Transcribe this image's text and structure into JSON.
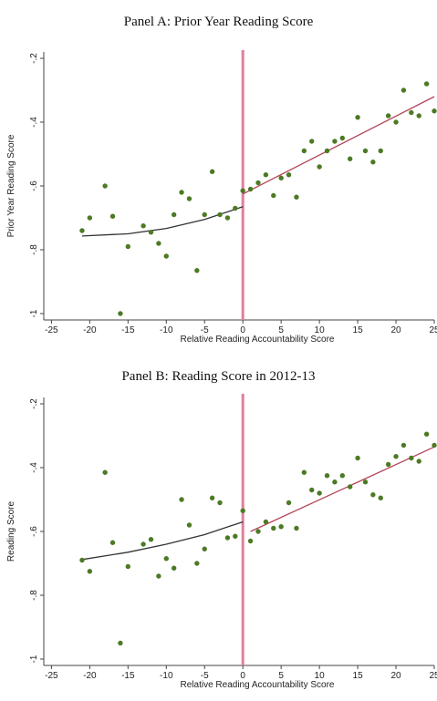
{
  "colors": {
    "dot": "#4c7a24",
    "fit_line": "#333333",
    "fit_line_right": "#b4455a",
    "cutoff": "#e0809a",
    "axis": "#444444"
  },
  "chart_data": [
    {
      "type": "scatter",
      "title": "Panel A: Prior Year Reading Score",
      "xlabel": "Relative Reading Accountability Score",
      "ylabel": "Prior Year Reading Score",
      "xlim": [
        -26,
        25
      ],
      "ylim": [
        -1.02,
        -0.18
      ],
      "xticks": [
        -25,
        -20,
        -15,
        -10,
        -5,
        0,
        5,
        10,
        15,
        20,
        25
      ],
      "xtick_labels": [
        "-25",
        "-20",
        "-15",
        "-10",
        "-5",
        "0",
        "5",
        "10",
        "15",
        "20",
        "25"
      ],
      "yticks": [
        -0.2,
        -0.4,
        -0.6,
        -0.8,
        -1.0
      ],
      "ytick_labels": [
        "-.2",
        "-.4",
        "-.6",
        "-.8",
        "-1"
      ],
      "cutoff_x": 0,
      "points": [
        [
          -21,
          -0.74
        ],
        [
          -20,
          -0.7
        ],
        [
          -18,
          -0.6
        ],
        [
          -17,
          -0.695
        ],
        [
          -16,
          -1.0
        ],
        [
          -15,
          -0.79
        ],
        [
          -13,
          -0.725
        ],
        [
          -12,
          -0.745
        ],
        [
          -11,
          -0.78
        ],
        [
          -10,
          -0.82
        ],
        [
          -9,
          -0.69
        ],
        [
          -8,
          -0.62
        ],
        [
          -7,
          -0.64
        ],
        [
          -6,
          -0.865
        ],
        [
          -5,
          -0.69
        ],
        [
          -4,
          -0.555
        ],
        [
          -3,
          -0.69
        ],
        [
          -2,
          -0.7
        ],
        [
          -1,
          -0.67
        ],
        [
          0,
          -0.615
        ],
        [
          1,
          -0.61
        ],
        [
          2,
          -0.59
        ],
        [
          3,
          -0.565
        ],
        [
          4,
          -0.63
        ],
        [
          5,
          -0.575
        ],
        [
          6,
          -0.565
        ],
        [
          7,
          -0.635
        ],
        [
          8,
          -0.49
        ],
        [
          9,
          -0.46
        ],
        [
          10,
          -0.54
        ],
        [
          11,
          -0.49
        ],
        [
          12,
          -0.46
        ],
        [
          13,
          -0.45
        ],
        [
          14,
          -0.515
        ],
        [
          15,
          -0.385
        ],
        [
          16,
          -0.49
        ],
        [
          17,
          -0.525
        ],
        [
          18,
          -0.49
        ],
        [
          19,
          -0.38
        ],
        [
          20,
          -0.4
        ],
        [
          21,
          -0.3
        ],
        [
          22,
          -0.37
        ],
        [
          23,
          -0.38
        ],
        [
          24,
          -0.28
        ],
        [
          25,
          -0.365
        ]
      ],
      "fit_left": [
        [
          -21,
          -0.757
        ],
        [
          -15,
          -0.75
        ],
        [
          -10,
          -0.733
        ],
        [
          -5,
          -0.705
        ],
        [
          0,
          -0.665
        ]
      ],
      "fit_right": [
        [
          0,
          -0.625
        ],
        [
          25,
          -0.32
        ]
      ]
    },
    {
      "type": "scatter",
      "title": "Panel B: Reading Score in 2012-13",
      "xlabel": "Relative Reading Accountability Score",
      "ylabel": "Reading Score",
      "xlim": [
        -26,
        25
      ],
      "ylim": [
        -1.02,
        -0.18
      ],
      "xticks": [
        -25,
        -20,
        -15,
        -10,
        -5,
        0,
        5,
        10,
        15,
        20,
        25
      ],
      "xtick_labels": [
        "-25",
        "-20",
        "-15",
        "-10",
        "-5",
        "0",
        "5",
        "10",
        "15",
        "20",
        "25"
      ],
      "yticks": [
        -0.2,
        -0.4,
        -0.6,
        -0.8,
        -1.0
      ],
      "ytick_labels": [
        "-.2",
        "-.4",
        "-.6",
        "-.8",
        "-1"
      ],
      "cutoff_x": 0,
      "points": [
        [
          -21,
          -0.69
        ],
        [
          -20,
          -0.725
        ],
        [
          -18,
          -0.415
        ],
        [
          -17,
          -0.635
        ],
        [
          -16,
          -0.95
        ],
        [
          -15,
          -0.71
        ],
        [
          -13,
          -0.64
        ],
        [
          -12,
          -0.625
        ],
        [
          -11,
          -0.74
        ],
        [
          -10,
          -0.685
        ],
        [
          -9,
          -0.715
        ],
        [
          -8,
          -0.5
        ],
        [
          -7,
          -0.58
        ],
        [
          -6,
          -0.7
        ],
        [
          -5,
          -0.655
        ],
        [
          -4,
          -0.495
        ],
        [
          -3,
          -0.51
        ],
        [
          -2,
          -0.62
        ],
        [
          -1,
          -0.615
        ],
        [
          0,
          -0.535
        ],
        [
          1,
          -0.63
        ],
        [
          2,
          -0.6
        ],
        [
          3,
          -0.57
        ],
        [
          4,
          -0.59
        ],
        [
          5,
          -0.585
        ],
        [
          6,
          -0.51
        ],
        [
          7,
          -0.59
        ],
        [
          8,
          -0.415
        ],
        [
          9,
          -0.47
        ],
        [
          10,
          -0.48
        ],
        [
          11,
          -0.425
        ],
        [
          12,
          -0.445
        ],
        [
          13,
          -0.425
        ],
        [
          14,
          -0.46
        ],
        [
          15,
          -0.37
        ],
        [
          16,
          -0.445
        ],
        [
          17,
          -0.485
        ],
        [
          18,
          -0.495
        ],
        [
          19,
          -0.39
        ],
        [
          20,
          -0.365
        ],
        [
          21,
          -0.33
        ],
        [
          22,
          -0.37
        ],
        [
          23,
          -0.38
        ],
        [
          24,
          -0.295
        ],
        [
          25,
          -0.33
        ]
      ],
      "fit_left": [
        [
          -21,
          -0.688
        ],
        [
          -15,
          -0.665
        ],
        [
          -10,
          -0.64
        ],
        [
          -5,
          -0.61
        ],
        [
          0,
          -0.57
        ]
      ],
      "fit_right": [
        [
          1,
          -0.6
        ],
        [
          25,
          -0.335
        ]
      ]
    }
  ]
}
